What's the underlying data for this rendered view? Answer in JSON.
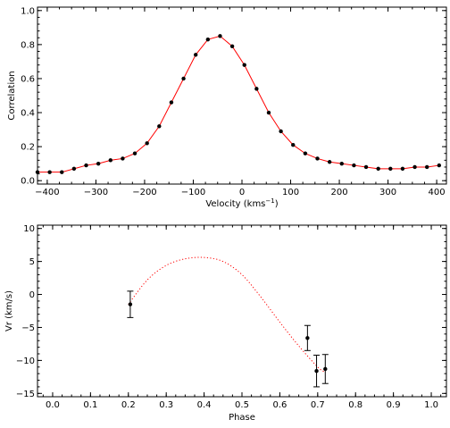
{
  "chart_data": [
    {
      "type": "line",
      "xlabel": "Velocity (kms",
      "xlabel_sup": "−1",
      "xlabel_close": ")",
      "ylabel": "Correlation",
      "xlim": [
        -420,
        420
      ],
      "ylim": [
        -0.02,
        1.02
      ],
      "xticks": [
        -400,
        -300,
        -200,
        -100,
        0,
        100,
        200,
        300,
        400
      ],
      "xtick_labels": [
        "−400",
        "−300",
        "−200",
        "−100",
        "0",
        "100",
        "200",
        "300",
        "400"
      ],
      "yticks": [
        0.0,
        0.2,
        0.4,
        0.6,
        0.8,
        1.0
      ],
      "ytick_labels": [
        "0.0",
        "0.2",
        "0.4",
        "0.6",
        "0.8",
        "1.0"
      ],
      "line_color": "#ff0000",
      "marker_color": "#000000",
      "series": [
        {
          "x": [
            -420,
            -395,
            -370,
            -345,
            -320,
            -295,
            -270,
            -245,
            -220,
            -195,
            -170,
            -145,
            -120,
            -95,
            -70,
            -45,
            -20,
            5,
            30,
            55,
            80,
            105,
            130,
            155,
            180,
            205,
            230,
            255,
            280,
            305,
            330,
            355,
            380,
            405
          ],
          "y": [
            0.05,
            0.05,
            0.05,
            0.07,
            0.09,
            0.1,
            0.12,
            0.13,
            0.16,
            0.22,
            0.32,
            0.46,
            0.6,
            0.74,
            0.83,
            0.85,
            0.79,
            0.68,
            0.54,
            0.4,
            0.29,
            0.21,
            0.16,
            0.13,
            0.11,
            0.1,
            0.09,
            0.08,
            0.07,
            0.07,
            0.07,
            0.08,
            0.08,
            0.09
          ]
        }
      ]
    },
    {
      "type": "scatter",
      "xlabel": "Phase",
      "ylabel": "Vr (km/s)",
      "xlim": [
        -0.04,
        1.04
      ],
      "ylim": [
        -15.5,
        10.5
      ],
      "xticks": [
        0.0,
        0.1,
        0.2,
        0.3,
        0.4,
        0.5,
        0.6,
        0.7,
        0.8,
        0.9,
        1.0
      ],
      "xtick_labels": [
        "0.0",
        "0.1",
        "0.2",
        "0.3",
        "0.4",
        "0.5",
        "0.6",
        "0.7",
        "0.8",
        "0.9",
        "1.0"
      ],
      "yticks": [
        -15,
        -10,
        -5,
        0,
        5,
        10
      ],
      "ytick_labels": [
        "−15",
        "−10",
        "−5",
        "0",
        "5",
        "10"
      ],
      "curve_color": "#ff0000",
      "curve_style": "dotted",
      "curve_x": [
        0.2,
        0.25,
        0.3,
        0.35,
        0.4,
        0.45,
        0.5,
        0.55,
        0.6,
        0.65,
        0.7,
        0.72
      ],
      "curve_y": [
        -1.5,
        2.2,
        4.4,
        5.4,
        5.6,
        5.0,
        3.0,
        -0.4,
        -4.2,
        -7.8,
        -11.0,
        -11.8
      ],
      "points": [
        {
          "x": 0.205,
          "y": -1.5,
          "err": 2.0
        },
        {
          "x": 0.673,
          "y": -6.6,
          "err": 1.9
        },
        {
          "x": 0.697,
          "y": -11.6,
          "err": 2.4
        },
        {
          "x": 0.72,
          "y": -11.3,
          "err": 2.2
        }
      ]
    }
  ]
}
